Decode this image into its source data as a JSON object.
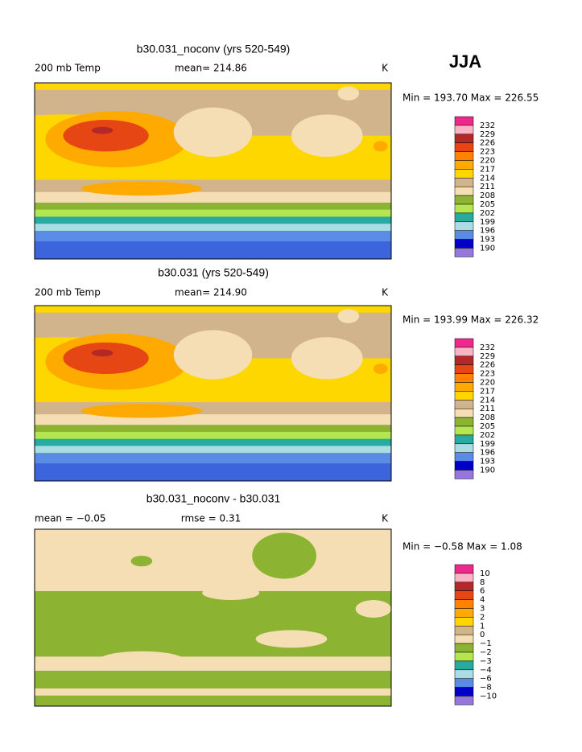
{
  "header": {
    "season": "JJA"
  },
  "colorbar_colors": [
    "#f0288c",
    "#f8b4c4",
    "#b42828",
    "#e64614",
    "#ff8200",
    "#ffaa00",
    "#ffd700",
    "#d2b48c",
    "#f5deb3",
    "#8cb432",
    "#b4e650",
    "#28aaa0",
    "#aadce6",
    "#5a8ce6",
    "#0000c8",
    "#9678dc"
  ],
  "panels": [
    {
      "title": "b30.031_noconv (yrs 520-549)",
      "left": "200 mb Temp",
      "center": "mean= 214.86",
      "right": "K",
      "minmax": "Min = 193.70 Max = 226.55",
      "colorbar_labels": [
        "232",
        "229",
        "226",
        "223",
        "220",
        "217",
        "214",
        "211",
        "208",
        "205",
        "202",
        "199",
        "196",
        "193",
        "190"
      ]
    },
    {
      "title": "b30.031 (yrs 520-549)",
      "left": "200 mb Temp",
      "center": "mean= 214.90",
      "right": "K",
      "minmax": "Min = 193.99 Max = 226.32",
      "colorbar_labels": [
        "232",
        "229",
        "226",
        "223",
        "220",
        "217",
        "214",
        "211",
        "208",
        "205",
        "202",
        "199",
        "196",
        "193",
        "190"
      ]
    },
    {
      "title": "b30.031_noconv - b30.031",
      "left": "mean =   −0.05",
      "center": "rmse =    0.31",
      "right": "K",
      "minmax": "Min =   −0.58 Max =    1.08",
      "colorbar_labels": [
        "10",
        "8",
        "6",
        "4",
        "3",
        "2",
        "1",
        "0",
        "−1",
        "−2",
        "−3",
        "−4",
        "−6",
        "−8",
        "−10"
      ]
    }
  ]
}
